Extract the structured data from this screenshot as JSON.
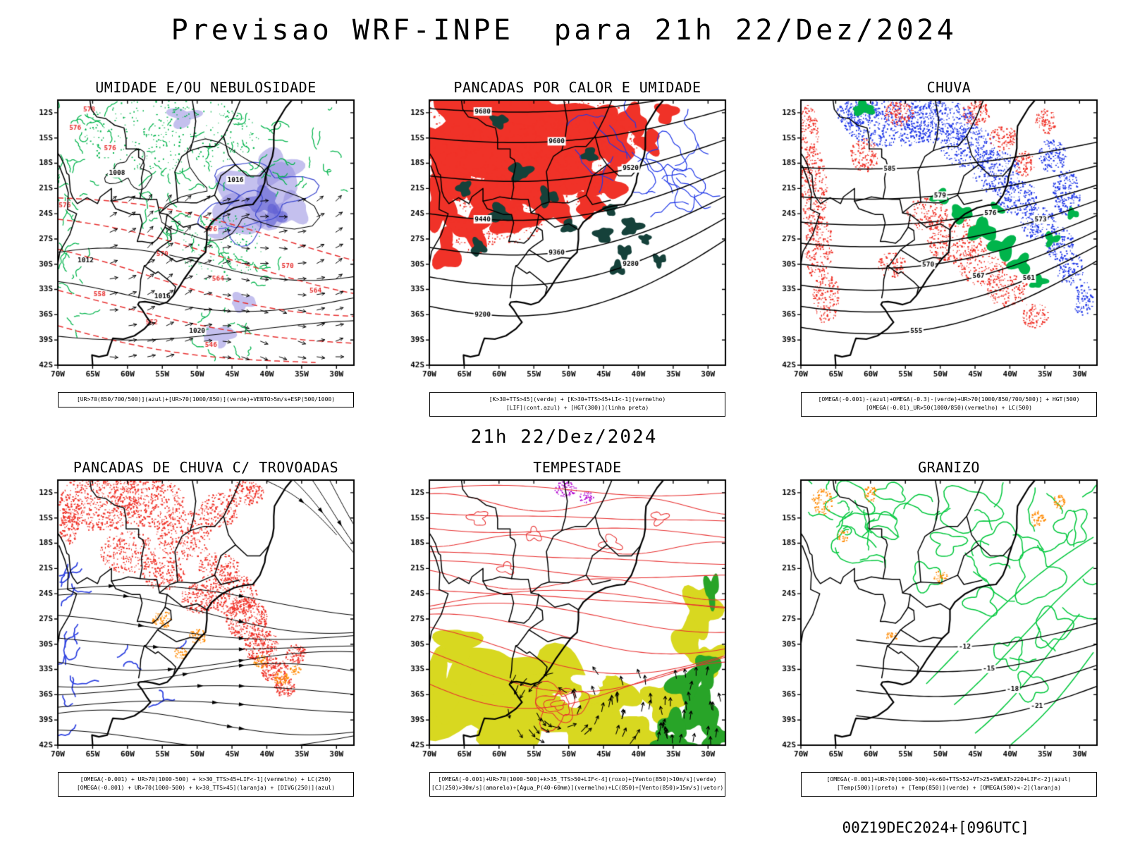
{
  "header": {
    "title": "Previsao WRF-INPE  para 21h 22/Dez/2024"
  },
  "middle_caption": "21h 22/Dez/2024",
  "footer": "00Z19DEC2024+[096UTC]",
  "axes": {
    "lat_ticks": [
      "12S",
      "15S",
      "18S",
      "21S",
      "24S",
      "27S",
      "30S",
      "33S",
      "36S",
      "39S",
      "42S"
    ],
    "lon_ticks": [
      "70W",
      "65W",
      "60W",
      "55W",
      "50W",
      "45W",
      "40W",
      "35W",
      "30W"
    ]
  },
  "colors": {
    "red": "#f03228",
    "green": "#00b44b",
    "bright_green": "#00c83c",
    "dark_teal": "#15413a",
    "blue": "#2038e8",
    "royal_blue": "#2b3fe0",
    "lavender": "#968ce0",
    "purple": "#b000d0",
    "orange": "#ff8a00",
    "yellow": "#d8d820",
    "leaf_green": "#28a428",
    "label_red": "#e83030",
    "black": "#000000"
  },
  "panels": [
    {
      "id": "umidade",
      "title": "UMIDADE E/OU NEBULOSIDADE",
      "style": "umidade",
      "caption_lines": [
        "[UR>70(850/700/500)](azul)+[UR>70(1000/850)](verde)+VENTO>5m/s+ESP(500/1000)"
      ],
      "contour_labels_black": [
        "1008",
        "1012",
        "1016",
        "1016",
        "1020"
      ],
      "contour_labels_red": [
        "578",
        "576",
        "570",
        "564",
        "558",
        "552",
        "546"
      ]
    },
    {
      "id": "pancadas-calor",
      "title": "PANCADAS POR CALOR E UMIDADE",
      "style": "pancadas_calor",
      "caption_lines": [
        "[K>30+TTS>45](verde) + [K>30+TTS>45+LI<-1](vermelho)",
        "[LIF](cont.azul) + [HGT(300)](linha preta)"
      ],
      "contour_labels_black": [
        "9680",
        "9600",
        "9520",
        "9440",
        "9360",
        "9280",
        "9200"
      ]
    },
    {
      "id": "chuva",
      "title": "CHUVA",
      "style": "chuva",
      "caption_lines": [
        "[OMEGA(-0.001)-(azul)+OMEGA(-0.3)-(verde)+UR>70(1000/850/700/500)] + HGT(500)",
        "[OMEGA(-0.01)_UR>50(1000/850)(vermelho) + LC(500)"
      ],
      "contour_labels_black": [
        "585",
        "579",
        "576",
        "573",
        "570",
        "567",
        "561",
        "555"
      ]
    },
    {
      "id": "trovoadas",
      "title": "PANCADAS DE CHUVA C/ TROVOADAS",
      "style": "trovoadas",
      "caption_lines": [
        "[OMEGA(-0.001) + UR>70(1000-500) + k>30_TTS>45+LIF<-1](vermelho) + LC(250)",
        "[OMEGA(-0.001) + UR>70(1000-500) + k>30_TTS>45](laranja) + [DIVG(250)](azul)"
      ]
    },
    {
      "id": "tempestade",
      "title": "TEMPESTADE",
      "style": "tempestade",
      "caption_lines": [
        "[OMEGA(-0.001)+UR>70(1000-500)+k>35_TTS>50+LIF<-4](roxo)+[Vento(850)>10m/s](verde)",
        "[CJ(250)>30m/s](amarelo)+[Agua_P(40-60mm)](vermelho)+LC(850)+[Vento(850)>15m/s](vetor)"
      ]
    },
    {
      "id": "granizo",
      "title": "GRANIZO",
      "style": "granizo",
      "caption_lines": [
        "[OMEGA(-0.001)+UR>70(1000-500)+k<60+TTS>52+VT>25+SWEAT>220+LIF<-2](azul)",
        "[Temp(500)](preto) + [Temp(850)](verde) + [OMEGA(500)<-2](laranja)"
      ],
      "contour_labels_black": [
        "-12",
        "-15",
        "-18",
        "-21"
      ]
    }
  ]
}
